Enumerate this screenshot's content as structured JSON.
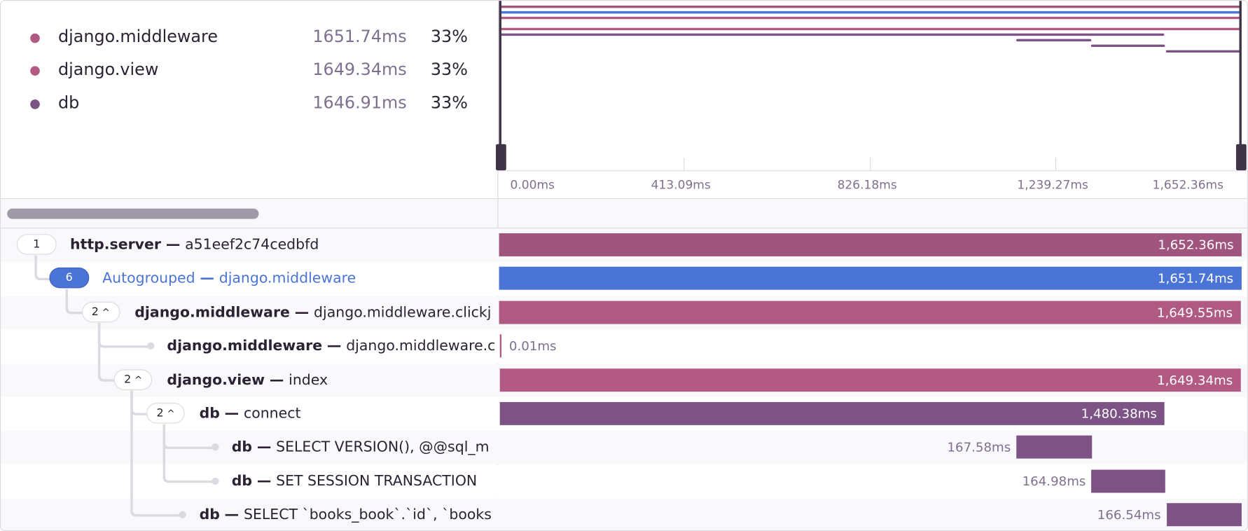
{
  "legend": [
    {
      "name": "django.middleware",
      "duration": "1651.74ms",
      "percent": "33%",
      "color": "#b05a83"
    },
    {
      "name": "django.view",
      "duration": "1649.34ms",
      "percent": "33%",
      "color": "#b35a84"
    },
    {
      "name": "db",
      "duration": "1646.91ms",
      "percent": "33%",
      "color": "#7d5285"
    }
  ],
  "timeline": {
    "total_ms": 1652.36,
    "ticks": [
      "0.00ms",
      "413.09ms",
      "826.18ms",
      "1,239.27ms",
      "1,652.36ms"
    ]
  },
  "rows": [
    {
      "count": "1",
      "op": "http.server",
      "desc": "a51eef2c74cedbfd",
      "depth": 0,
      "parent": -1,
      "start_ms": 0,
      "duration_ms": 1652.36,
      "duration_label": "1,652.36ms",
      "color": "#a0557f",
      "toggle": "count"
    },
    {
      "count": "6",
      "op": "Autogrouped",
      "desc": "django.middleware",
      "depth": 1,
      "parent": 0,
      "start_ms": 0,
      "duration_ms": 1651.74,
      "duration_label": "1,651.74ms",
      "color": "#4a74d6",
      "toggle": "autogroup"
    },
    {
      "count": "2",
      "op": "django.middleware",
      "desc": "django.middleware.clickj",
      "depth": 2,
      "parent": 1,
      "start_ms": 0.5,
      "duration_ms": 1649.55,
      "duration_label": "1,649.55ms",
      "color": "#b05a83",
      "toggle": "expanded"
    },
    {
      "count": "",
      "op": "django.middleware",
      "desc": "django.middleware.c",
      "depth": 3,
      "parent": 2,
      "start_ms": 1,
      "duration_ms": 0.01,
      "duration_label": "0.01ms",
      "color": "#b05a83",
      "toggle": "leaf"
    },
    {
      "count": "2",
      "op": "django.view",
      "desc": "index",
      "depth": 3,
      "parent": 2,
      "start_ms": 1,
      "duration_ms": 1649.34,
      "duration_label": "1,649.34ms",
      "color": "#b35a84",
      "toggle": "expanded"
    },
    {
      "count": "2",
      "op": "db",
      "desc": "connect",
      "depth": 4,
      "parent": 4,
      "start_ms": 1,
      "duration_ms": 1480.38,
      "duration_label": "1,480.38ms",
      "color": "#7d5285",
      "toggle": "expanded"
    },
    {
      "count": "",
      "op": "db",
      "desc": "SELECT VERSION(), @@sql_m",
      "depth": 5,
      "parent": 5,
      "start_ms": 1151,
      "duration_ms": 167.58,
      "duration_label": "167.58ms",
      "color": "#7d5285",
      "toggle": "leaf"
    },
    {
      "count": "",
      "op": "db",
      "desc": "SET SESSION TRANSACTION",
      "depth": 5,
      "parent": 5,
      "start_ms": 1318,
      "duration_ms": 164.98,
      "duration_label": "164.98ms",
      "color": "#7d5285",
      "toggle": "leaf"
    },
    {
      "count": "",
      "op": "db",
      "desc": "SELECT `books_book`.`id`, `books",
      "depth": 4,
      "parent": 4,
      "start_ms": 1485,
      "duration_ms": 166.54,
      "duration_label": "166.54ms",
      "color": "#7d5285",
      "toggle": "leaf"
    }
  ],
  "separator": "—",
  "colors": {
    "border": "#dcd9e0",
    "handle": "#3e3446",
    "scrollbar": "#9f99a8",
    "muted_text": "#80708f",
    "autogroup_text": "#4a74d6"
  }
}
